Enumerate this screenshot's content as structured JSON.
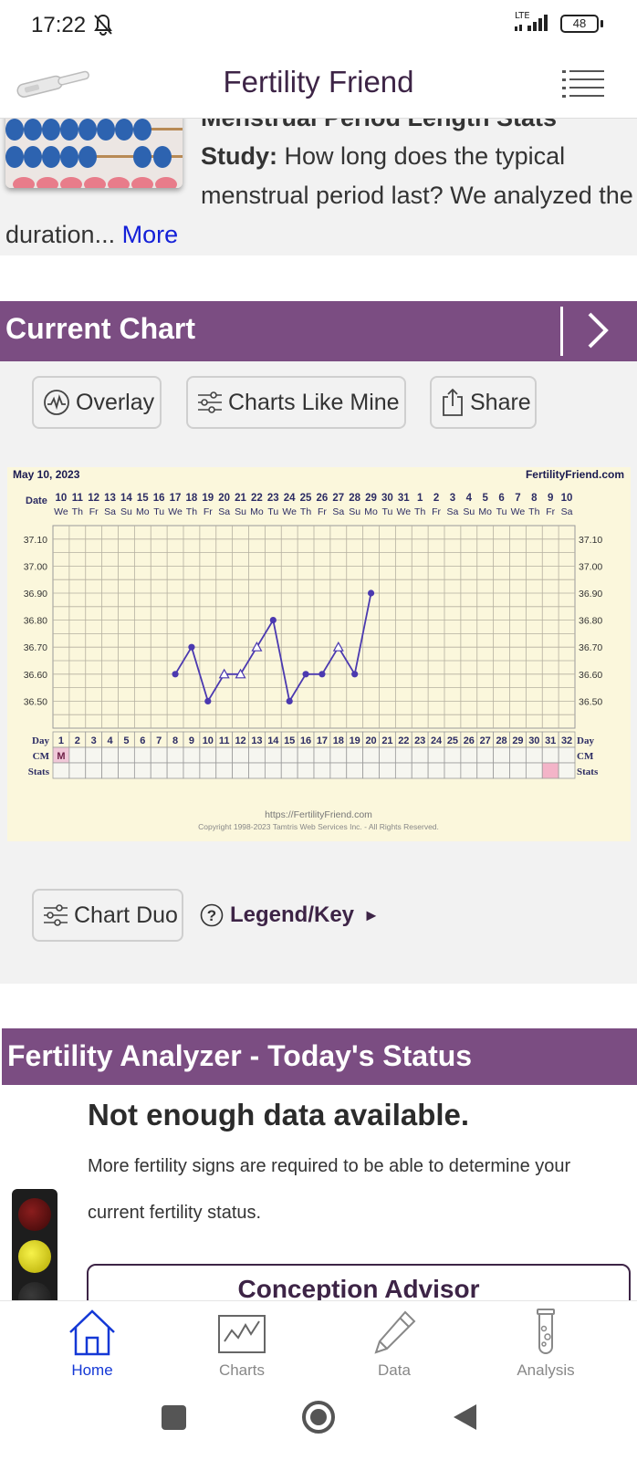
{
  "status_bar": {
    "time": "17:22",
    "network": "LTE",
    "battery": "48"
  },
  "header": {
    "title": "Fertility Friend"
  },
  "article": {
    "title_cut": "Menstrual Period Length Stats",
    "lead": "Study:",
    "body": " How long does the typical menstrual period last? We analyzed the duration... ",
    "more": "More"
  },
  "current_chart": {
    "title": "Current Chart",
    "buttons": {
      "overlay": "Overlay",
      "charts_like_mine": "Charts Like Mine",
      "share": "Share",
      "chart_duo": "Chart Duo"
    },
    "legend": "Legend/Key",
    "legend_arrow": "►"
  },
  "chart_data": {
    "type": "line",
    "date_label_text": "May 10, 2023",
    "site": "FertilityFriend.com",
    "row_labels": {
      "date": "Date",
      "day": "Day",
      "cm": "CM",
      "stats": "Stats"
    },
    "dates": [
      "10",
      "11",
      "12",
      "13",
      "14",
      "15",
      "16",
      "17",
      "18",
      "19",
      "20",
      "21",
      "22",
      "23",
      "24",
      "25",
      "26",
      "27",
      "28",
      "29",
      "30",
      "31",
      "1",
      "2",
      "3",
      "4",
      "5",
      "6",
      "7",
      "8",
      "9",
      "10"
    ],
    "weekdays": [
      "We",
      "Th",
      "Fr",
      "Sa",
      "Su",
      "Mo",
      "Tu",
      "We",
      "Th",
      "Fr",
      "Sa",
      "Su",
      "Mo",
      "Tu",
      "We",
      "Th",
      "Fr",
      "Sa",
      "Su",
      "Mo",
      "Tu",
      "We",
      "Th",
      "Fr",
      "Sa",
      "Su",
      "Mo",
      "Tu",
      "We",
      "Th",
      "Fr",
      "Sa"
    ],
    "days": [
      1,
      2,
      3,
      4,
      5,
      6,
      7,
      8,
      9,
      10,
      11,
      12,
      13,
      14,
      15,
      16,
      17,
      18,
      19,
      20,
      21,
      22,
      23,
      24,
      25,
      26,
      27,
      28,
      29,
      30,
      31,
      32
    ],
    "y_ticks": [
      "37.10",
      "37.00",
      "36.90",
      "36.80",
      "36.70",
      "36.60",
      "36.50"
    ],
    "ylim": [
      36.4,
      37.15
    ],
    "temps": [
      {
        "day": 8,
        "value": 36.6,
        "marker": "dot"
      },
      {
        "day": 9,
        "value": 36.7,
        "marker": "dot"
      },
      {
        "day": 10,
        "value": 36.5,
        "marker": "dot"
      },
      {
        "day": 11,
        "value": 36.6,
        "marker": "triangle"
      },
      {
        "day": 12,
        "value": 36.6,
        "marker": "triangle"
      },
      {
        "day": 13,
        "value": 36.7,
        "marker": "triangle"
      },
      {
        "day": 14,
        "value": 36.8,
        "marker": "dot"
      },
      {
        "day": 15,
        "value": 36.5,
        "marker": "dot"
      },
      {
        "day": 16,
        "value": 36.6,
        "marker": "dot"
      },
      {
        "day": 17,
        "value": 36.6,
        "marker": "dot"
      },
      {
        "day": 18,
        "value": 36.7,
        "marker": "triangle"
      },
      {
        "day": 19,
        "value": 36.6,
        "marker": "dot"
      },
      {
        "day": 20,
        "value": 36.9,
        "marker": "dot"
      }
    ],
    "cm": [
      {
        "day": 1,
        "value": "M"
      }
    ],
    "stats_highlight_day": 31,
    "line_color": "#4b39b0",
    "footer_url": "https://FertilityFriend.com",
    "footer_copyright": "Copyright 1998-2023 Tamtris Web Services Inc. - All Rights Reserved."
  },
  "fertility_analyzer": {
    "title": "Fertility Analyzer - Today's Status",
    "heading": "Not enough data available.",
    "description": "More fertility signs are required to be able to determine your current fertility status.",
    "conception_advisor": "Conception Advisor"
  },
  "bottom_nav": {
    "home": "Home",
    "charts": "Charts",
    "data": "Data",
    "analysis": "Analysis",
    "active_color": "#1438d6"
  },
  "colors": {
    "accent": "#7b4d82",
    "title": "#3d2446",
    "chart_bg": "#fbf7dc",
    "link": "#1420d8"
  }
}
